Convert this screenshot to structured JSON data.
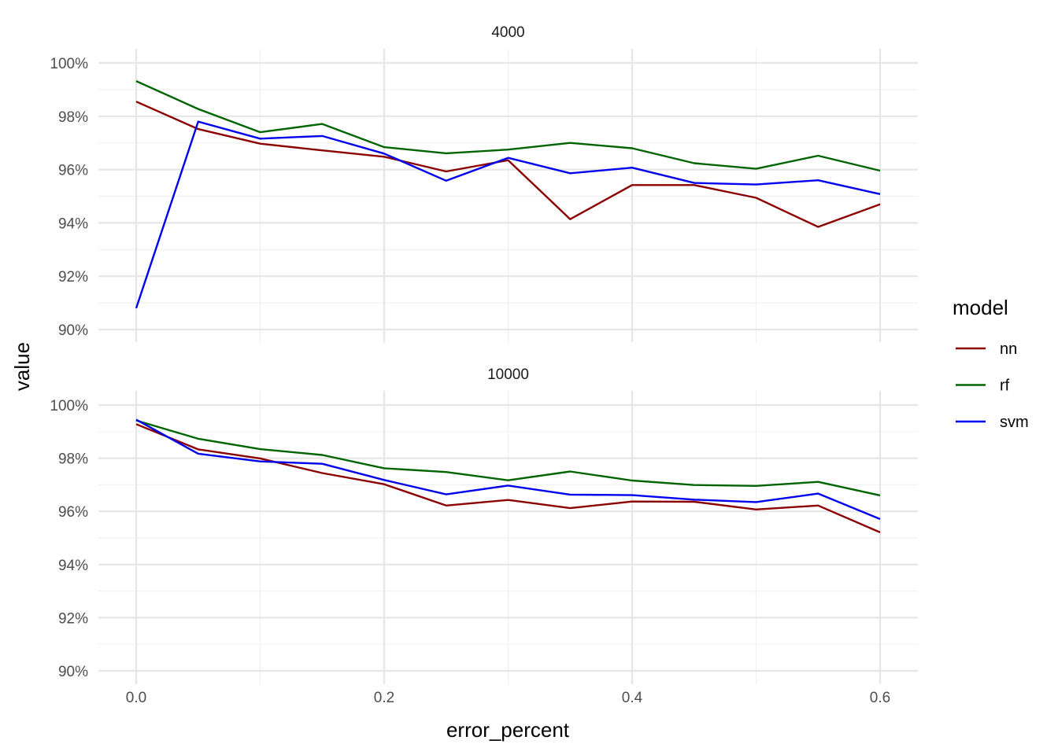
{
  "chart_data": {
    "type": "line",
    "xlabel": "error_percent",
    "ylabel": "value",
    "xlim": [
      0,
      0.6
    ],
    "ylim": [
      0.9,
      1.0
    ],
    "x_ticks": [
      0.0,
      0.2,
      0.4,
      0.6
    ],
    "x_tick_labels": [
      "0.0",
      "0.2",
      "0.4",
      "0.6"
    ],
    "y_ticks": [
      0.9,
      0.92,
      0.94,
      0.96,
      0.98,
      1.0
    ],
    "y_tick_labels": [
      "90%",
      "92%",
      "94%",
      "96%",
      "98%",
      "100%"
    ],
    "grid": true,
    "legend": {
      "title": "model",
      "position": "right",
      "entries": [
        {
          "name": "nn",
          "color": "#8B0000"
        },
        {
          "name": "rf",
          "color": "#006400"
        },
        {
          "name": "svm",
          "color": "#0000EE"
        }
      ]
    },
    "x": [
      0.0,
      0.05,
      0.1,
      0.15,
      0.2,
      0.25,
      0.3,
      0.35,
      0.4,
      0.45,
      0.5,
      0.55,
      0.6
    ],
    "panels": [
      {
        "label": "4000",
        "series": [
          {
            "name": "nn",
            "values": [
              0.9855,
              0.9752,
              0.9697,
              0.9672,
              0.9648,
              0.9593,
              0.9635,
              0.9414,
              0.9542,
              0.9542,
              0.9494,
              0.9385,
              0.947
            ]
          },
          {
            "name": "rf",
            "values": [
              0.9932,
              0.9827,
              0.974,
              0.9771,
              0.9684,
              0.9661,
              0.9675,
              0.97,
              0.968,
              0.9624,
              0.9603,
              0.9652,
              0.9596
            ]
          },
          {
            "name": "svm",
            "values": [
              0.908,
              0.978,
              0.9716,
              0.9726,
              0.966,
              0.9558,
              0.9644,
              0.9586,
              0.9607,
              0.955,
              0.9544,
              0.956,
              0.9508
            ]
          }
        ]
      },
      {
        "label": "10000",
        "series": [
          {
            "name": "nn",
            "values": [
              0.9928,
              0.9833,
              0.9799,
              0.9744,
              0.9702,
              0.9622,
              0.9643,
              0.9612,
              0.9637,
              0.9636,
              0.9607,
              0.9622,
              0.9521
            ]
          },
          {
            "name": "rf",
            "values": [
              0.9942,
              0.9873,
              0.9834,
              0.9812,
              0.9762,
              0.9748,
              0.9717,
              0.975,
              0.9716,
              0.9699,
              0.9696,
              0.9711,
              0.966
            ]
          },
          {
            "name": "svm",
            "values": [
              0.9945,
              0.9817,
              0.9788,
              0.9779,
              0.9718,
              0.9664,
              0.9697,
              0.9663,
              0.9661,
              0.9644,
              0.9635,
              0.9667,
              0.9571
            ]
          }
        ]
      }
    ]
  }
}
